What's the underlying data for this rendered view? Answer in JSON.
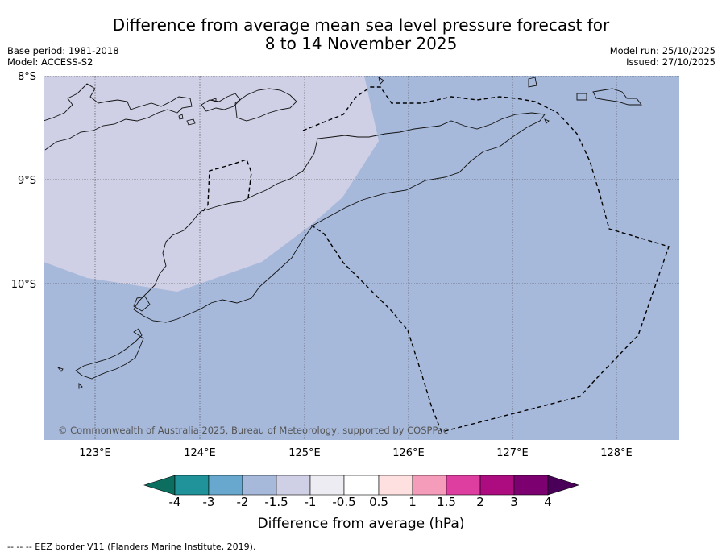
{
  "title": {
    "line1": "Difference from average mean sea level pressure forecast for",
    "line2": "8 to 14 November 2025"
  },
  "meta": {
    "base_period": "Base period: 1981-2018",
    "model": "Model: ACCESS-S2",
    "model_run": "Model run: 25/10/2025",
    "issued": "Issued: 27/10/2025"
  },
  "map": {
    "lat_labels": [
      "8°S",
      "9°S",
      "10°S"
    ],
    "lon_labels": [
      "123°E",
      "124°E",
      "125°E",
      "126°E",
      "127°E",
      "128°E"
    ],
    "copyright": "© Commonwealth of Australia 2025, Bureau of Meteorology, supported by COSPPac",
    "anomaly_region_bin": "-1.5 to -1",
    "background_bin": "-2 to -1.5"
  },
  "colorbar": {
    "title": "Difference from average (hPa)",
    "labels": [
      "-4",
      "-3",
      "-2",
      "-1.5",
      "-1",
      "-0.5",
      "0.5",
      "1",
      "1.5",
      "2",
      "3",
      "4"
    ],
    "colors": {
      "under": "#0c6e5e",
      "c1": "#1f9399",
      "c2": "#68a8cf",
      "c3": "#a7b9db",
      "c4": "#cfcfe5",
      "c5": "#ececf2",
      "c6": "#ffffff",
      "c7": "#ffe0e0",
      "c8": "#f59cbb",
      "c9": "#de3ea0",
      "c10": "#ad0b80",
      "c11": "#7c0070",
      "over": "#4a0058"
    }
  },
  "footnote": "--  --  -- EEZ border V11 (Flanders Marine Institute, 2019)."
}
